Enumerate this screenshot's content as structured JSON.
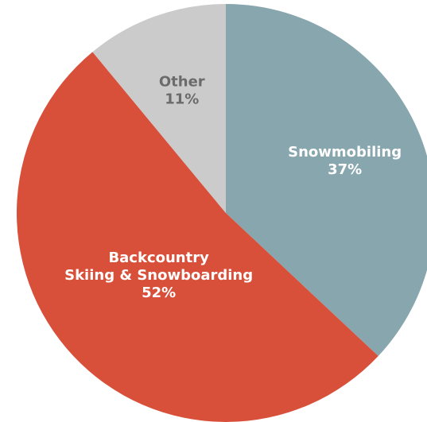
{
  "chart_data": {
    "type": "pie",
    "slices": [
      {
        "label_lines": [
          "Snowmobiling"
        ],
        "value": 37,
        "value_label": "37%",
        "color": "#88a6ae",
        "label_color": "#ffffff"
      },
      {
        "label_lines": [
          "Backcountry",
          "Skiing & Snowboarding"
        ],
        "value": 52,
        "value_label": "52%",
        "color": "#d8503a",
        "label_color": "#ffffff"
      },
      {
        "label_lines": [
          "Other"
        ],
        "value": 11,
        "value_label": "11%",
        "color": "#cbcbcb",
        "label_color": "#6b6b6b"
      }
    ],
    "start_angle": "12 o'clock",
    "direction": "clockwise",
    "legend": "none (labels inside slices)"
  }
}
